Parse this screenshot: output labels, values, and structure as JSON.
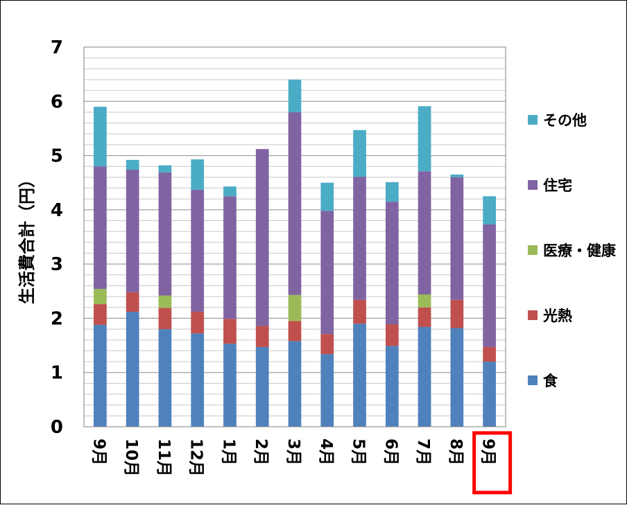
{
  "chart_data": {
    "type": "bar",
    "stacked": true,
    "title": "",
    "xlabel": "",
    "ylabel": "生活費合計（円）",
    "ylim": [
      0,
      7
    ],
    "yticks": [
      "0",
      "1",
      "2",
      "3",
      "4",
      "5",
      "6",
      "7"
    ],
    "categories": [
      "9月",
      "10月",
      "11月",
      "12月",
      "1月",
      "2月",
      "3月",
      "4月",
      "5月",
      "6月",
      "7月",
      "8月",
      "9月"
    ],
    "highlighted_category_index": 12,
    "highlight_color": "#ff0000",
    "grid": true,
    "legend_position": "right",
    "series": [
      {
        "name": "食",
        "color": "#4f81bd",
        "values": [
          1.88,
          2.12,
          1.8,
          1.72,
          1.53,
          1.47,
          1.58,
          1.34,
          1.9,
          1.49,
          1.84,
          1.82,
          1.2
        ]
      },
      {
        "name": "光熱",
        "color": "#c0504d",
        "values": [
          0.38,
          0.36,
          0.39,
          0.4,
          0.46,
          0.39,
          0.37,
          0.37,
          0.44,
          0.4,
          0.36,
          0.52,
          0.27
        ]
      },
      {
        "name": "医療・健康",
        "color": "#9bbb59",
        "values": [
          0.28,
          0.0,
          0.23,
          0.0,
          0.0,
          0.0,
          0.48,
          0.0,
          0.0,
          0.0,
          0.24,
          0.0,
          0.0
        ]
      },
      {
        "name": "住宅",
        "color": "#8064a2",
        "values": [
          2.26,
          2.26,
          2.27,
          2.25,
          2.26,
          3.26,
          3.37,
          2.27,
          2.27,
          2.26,
          2.27,
          2.26,
          2.26
        ]
      },
      {
        "name": "その他",
        "color": "#4bacc6",
        "values": [
          1.1,
          0.18,
          0.13,
          0.56,
          0.18,
          0.0,
          0.6,
          0.52,
          0.86,
          0.36,
          1.2,
          0.05,
          0.52
        ]
      }
    ]
  }
}
